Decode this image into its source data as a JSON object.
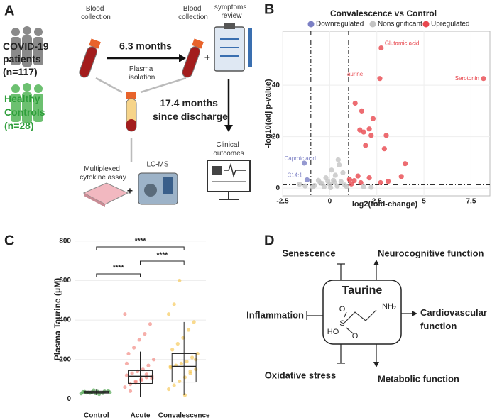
{
  "panel_labels": [
    "A",
    "B",
    "C",
    "D"
  ],
  "panel_a": {
    "patients": [
      "COVID-19",
      "patients",
      "(n=117)"
    ],
    "controls": [
      "Healthy",
      "Controls",
      "(n=28)"
    ],
    "blood_collection_1": [
      "Blood",
      "collection"
    ],
    "blood_collection_2": [
      "Blood",
      "collection"
    ],
    "interval_1": "6.3 months",
    "plus_1": "+",
    "symptoms": [
      "symptoms",
      "review"
    ],
    "plasma": [
      "Plasma",
      "isolation"
    ],
    "interval_2": [
      "17.4 months",
      "since discharge"
    ],
    "outcomes": [
      "Clinical",
      "outcomes"
    ],
    "cytokine": [
      "Multiplexed",
      "cytokine assay"
    ],
    "plus_2": "+",
    "lcms": "LC-MS"
  },
  "panel_d": {
    "center": "Taurine",
    "atoms": [
      "NH₂",
      "O",
      "S",
      "O",
      "HO"
    ],
    "senescence": "Senescence",
    "neuro": "Neurocognitive function",
    "inflammation": "Inflammation",
    "cardio": [
      "Cardiovascular",
      "function"
    ],
    "oxidative": "Oxidative stress",
    "metabolic": "Metabolic function"
  },
  "chart_data": [
    {
      "type": "scatter",
      "title": "Convalescence vs Control",
      "x_label": "log2(fold-change)",
      "y_label": "-log10(adj p-value)",
      "xlim": [
        -2.5,
        8.5
      ],
      "ylim": [
        -3,
        61
      ],
      "xticks": [
        -2.5,
        0,
        2.5,
        5,
        7.5
      ],
      "yticks": [
        0,
        20,
        40
      ],
      "vlines": [
        -1,
        1
      ],
      "hlines": [
        1.3
      ],
      "grid": true,
      "legend": "top",
      "series": [
        {
          "name": "Downregulated",
          "color": "#7b7fc4",
          "x": [
            -1.35,
            -1.2
          ],
          "values": [
            9.7,
            3.2
          ],
          "point_labels": [
            "Caproic acid",
            "C14:1"
          ]
        },
        {
          "name": "Nonsignificant",
          "color": "#c4c4c4",
          "x": [
            -0.8,
            -0.5,
            -0.3,
            0,
            0.2,
            0.4,
            0.6,
            0.8,
            -0.2,
            0.3,
            0.7,
            -0.6,
            0.1,
            0.5,
            -0.9,
            0.9,
            -0.4,
            0.25,
            -1.6,
            1.8,
            2.2,
            -1.3,
            0.45,
            0.05,
            -0.1
          ],
          "values": [
            1,
            2,
            0.5,
            1.5,
            3,
            0.8,
            2.5,
            1.2,
            4,
            5,
            6,
            3,
            7,
            9,
            0.4,
            0.6,
            1.8,
            2.2,
            1.5,
            0.5,
            0.3,
            0.8,
            11,
            0.2,
            2.7
          ]
        },
        {
          "name": "Upregulated",
          "color": "#e8474e",
          "x": [
            2.73,
            8.16,
            2.66,
            1.35,
            1.7,
            1.6,
            1.8,
            2.1,
            2.3,
            2.2,
            1.9,
            2.9,
            3.0,
            4.0,
            3.8,
            3.1,
            2.7,
            2.1,
            1.65,
            1.3,
            1.15,
            1.5,
            1.05
          ],
          "values": [
            54.5,
            42.6,
            42.6,
            33,
            30,
            22.6,
            21.8,
            23,
            27,
            20.5,
            16.6,
            15.3,
            20.5,
            9.5,
            4.5,
            2.6,
            2.1,
            4,
            2.1,
            2.9,
            1.6,
            4.7,
            3.4
          ],
          "point_labels": [
            "Glutamic acid",
            "Serotonin",
            "Taurine",
            null,
            null,
            null,
            null,
            null,
            null,
            null,
            null,
            null,
            null,
            null,
            null,
            null,
            null,
            null,
            null,
            null,
            null,
            null,
            null
          ]
        }
      ]
    },
    {
      "type": "box",
      "y_label": "Plasma Taurine (μM)",
      "ylim": [
        -45,
        835
      ],
      "yticks": [
        0,
        200,
        400,
        600,
        800
      ],
      "grid": true,
      "categories": [
        "Control",
        "Acute",
        "Convalescence"
      ],
      "colors": [
        "#3a9a3a",
        "#f07a72",
        "#f5c242"
      ],
      "boxes": [
        {
          "min": 20,
          "q1": 30,
          "median": 35,
          "q3": 40,
          "max": 50
        },
        {
          "min": 10,
          "q1": 79,
          "median": 115,
          "q3": 144,
          "max": 240
        },
        {
          "min": 20,
          "q1": 86,
          "median": 165,
          "q3": 230,
          "max": 390
        }
      ],
      "points": [
        [
          28,
          32,
          35,
          38,
          30,
          41,
          36,
          33,
          45,
          25,
          39,
          34,
          37,
          31,
          29
        ],
        [
          60,
          75,
          90,
          100,
          110,
          115,
          120,
          130,
          140,
          150,
          170,
          200,
          230,
          260,
          300,
          330,
          380,
          430,
          40,
          85,
          95,
          125,
          105,
          180
        ],
        [
          50,
          70,
          90,
          110,
          130,
          150,
          160,
          170,
          180,
          190,
          210,
          230,
          250,
          280,
          310,
          350,
          390,
          430,
          480,
          600,
          20,
          140,
          200,
          165
        ]
      ],
      "significance": [
        {
          "from": 0,
          "to": 1,
          "label": "****"
        },
        {
          "from": 1,
          "to": 2,
          "label": "****"
        },
        {
          "from": 0,
          "to": 2,
          "label": "****"
        }
      ]
    }
  ]
}
